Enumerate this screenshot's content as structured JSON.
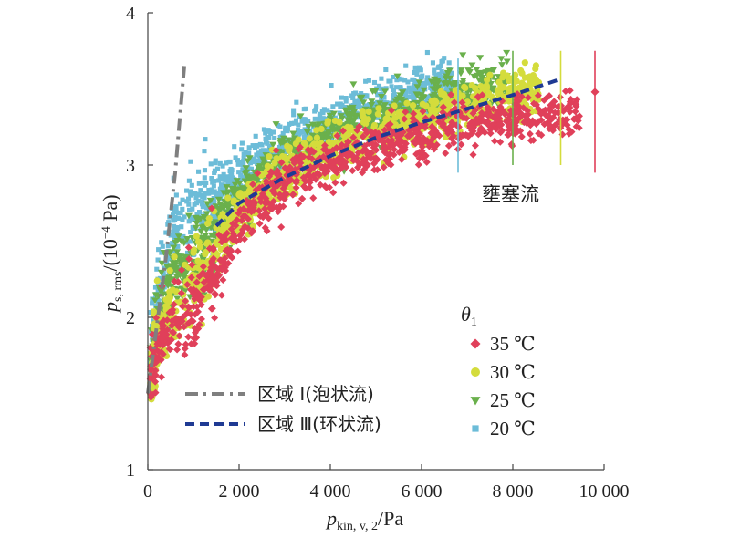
{
  "chart_data": {
    "type": "scatter",
    "xlabel": {
      "main": "p",
      "sub": "kin, v, 2",
      "unit": "/Pa"
    },
    "ylabel": {
      "main": "p",
      "sub": "s, rms",
      "unit": "/(10",
      "exp": "−4",
      "unit_end": " Pa)"
    },
    "xlim": [
      0,
      10000
    ],
    "ylim": [
      1,
      4
    ],
    "xticks": [
      0,
      2000,
      4000,
      6000,
      8000,
      10000
    ],
    "xtick_labels": [
      "0",
      "2 000",
      "4 000",
      "6 000",
      "8 000",
      "10 000"
    ],
    "yticks": [
      1,
      2,
      3,
      4
    ],
    "ytick_labels": [
      "1",
      "2",
      "3",
      "4"
    ],
    "grid": false,
    "annotation": "壅塞流",
    "legend_placement": "bottom-right",
    "legend_title": {
      "main": "θ",
      "sub": "1"
    },
    "series": [
      {
        "name": "35 ℃",
        "marker": "diamond",
        "color": "#e0405a",
        "x_range": [
          50,
          9500
        ],
        "trend": [
          [
            0,
            1.5
          ],
          [
            200,
            1.8
          ],
          [
            500,
            1.95
          ],
          [
            1000,
            2.05
          ],
          [
            1500,
            2.3
          ],
          [
            2000,
            2.6
          ],
          [
            2500,
            2.78
          ],
          [
            3000,
            2.88
          ],
          [
            4000,
            3.0
          ],
          [
            5000,
            3.1
          ],
          [
            6000,
            3.2
          ],
          [
            7000,
            3.28
          ],
          [
            8000,
            3.32
          ],
          [
            9500,
            3.35
          ]
        ],
        "errorbar": {
          "x": 9800,
          "y": 3.48,
          "low": 2.95,
          "high": 3.75
        }
      },
      {
        "name": "30 ℃",
        "marker": "circle",
        "color": "#d4dc3c",
        "x_range": [
          50,
          8600
        ],
        "trend": [
          [
            0,
            1.5
          ],
          [
            200,
            1.85
          ],
          [
            500,
            2.05
          ],
          [
            1000,
            2.2
          ],
          [
            1500,
            2.45
          ],
          [
            2000,
            2.68
          ],
          [
            3000,
            2.95
          ],
          [
            4000,
            3.1
          ],
          [
            5000,
            3.22
          ],
          [
            6000,
            3.3
          ],
          [
            7000,
            3.38
          ],
          [
            8000,
            3.45
          ],
          [
            8600,
            3.48
          ]
        ],
        "errorbar": {
          "x": 9050,
          "y": 3.48,
          "low": 3.0,
          "high": 3.75
        }
      },
      {
        "name": "25 ℃",
        "marker": "triangle-down",
        "color": "#6ab04c",
        "x_range": [
          50,
          7900
        ],
        "trend": [
          [
            0,
            1.55
          ],
          [
            200,
            1.95
          ],
          [
            500,
            2.25
          ],
          [
            1000,
            2.4
          ],
          [
            1500,
            2.6
          ],
          [
            2000,
            2.8
          ],
          [
            3000,
            3.05
          ],
          [
            4000,
            3.2
          ],
          [
            5000,
            3.3
          ],
          [
            6000,
            3.4
          ],
          [
            7000,
            3.5
          ],
          [
            7900,
            3.55
          ]
        ],
        "errorbar": {
          "x": 8000,
          "y": 3.5,
          "low": 3.0,
          "high": 3.75
        }
      },
      {
        "name": "20 ℃",
        "marker": "square",
        "color": "#6cbcd8",
        "x_range": [
          50,
          6700
        ],
        "trend": [
          [
            0,
            1.6
          ],
          [
            200,
            2.1
          ],
          [
            500,
            2.5
          ],
          [
            1000,
            2.7
          ],
          [
            1500,
            2.8
          ],
          [
            2000,
            2.95
          ],
          [
            3000,
            3.15
          ],
          [
            4000,
            3.3
          ],
          [
            5000,
            3.4
          ],
          [
            6000,
            3.5
          ],
          [
            6700,
            3.55
          ]
        ],
        "errorbar": {
          "x": 6800,
          "y": 3.45,
          "low": 2.95,
          "high": 3.7
        }
      }
    ],
    "reference_lines": [
      {
        "name": "区域 Ⅰ(泡状流)",
        "style": "dash-dot",
        "color": "#7f7f7f",
        "points": [
          [
            0,
            1.5
          ],
          [
            200,
            1.95
          ],
          [
            400,
            2.4
          ],
          [
            600,
            2.95
          ],
          [
            800,
            3.65
          ]
        ]
      },
      {
        "name": "区域 Ⅲ(环状流)",
        "style": "dashed",
        "color": "#1f3a93",
        "points": [
          [
            1500,
            2.6
          ],
          [
            2000,
            2.75
          ],
          [
            3000,
            2.92
          ],
          [
            4000,
            3.06
          ],
          [
            5000,
            3.18
          ],
          [
            6000,
            3.28
          ],
          [
            7000,
            3.37
          ],
          [
            8000,
            3.46
          ],
          [
            9000,
            3.56
          ]
        ]
      }
    ]
  }
}
